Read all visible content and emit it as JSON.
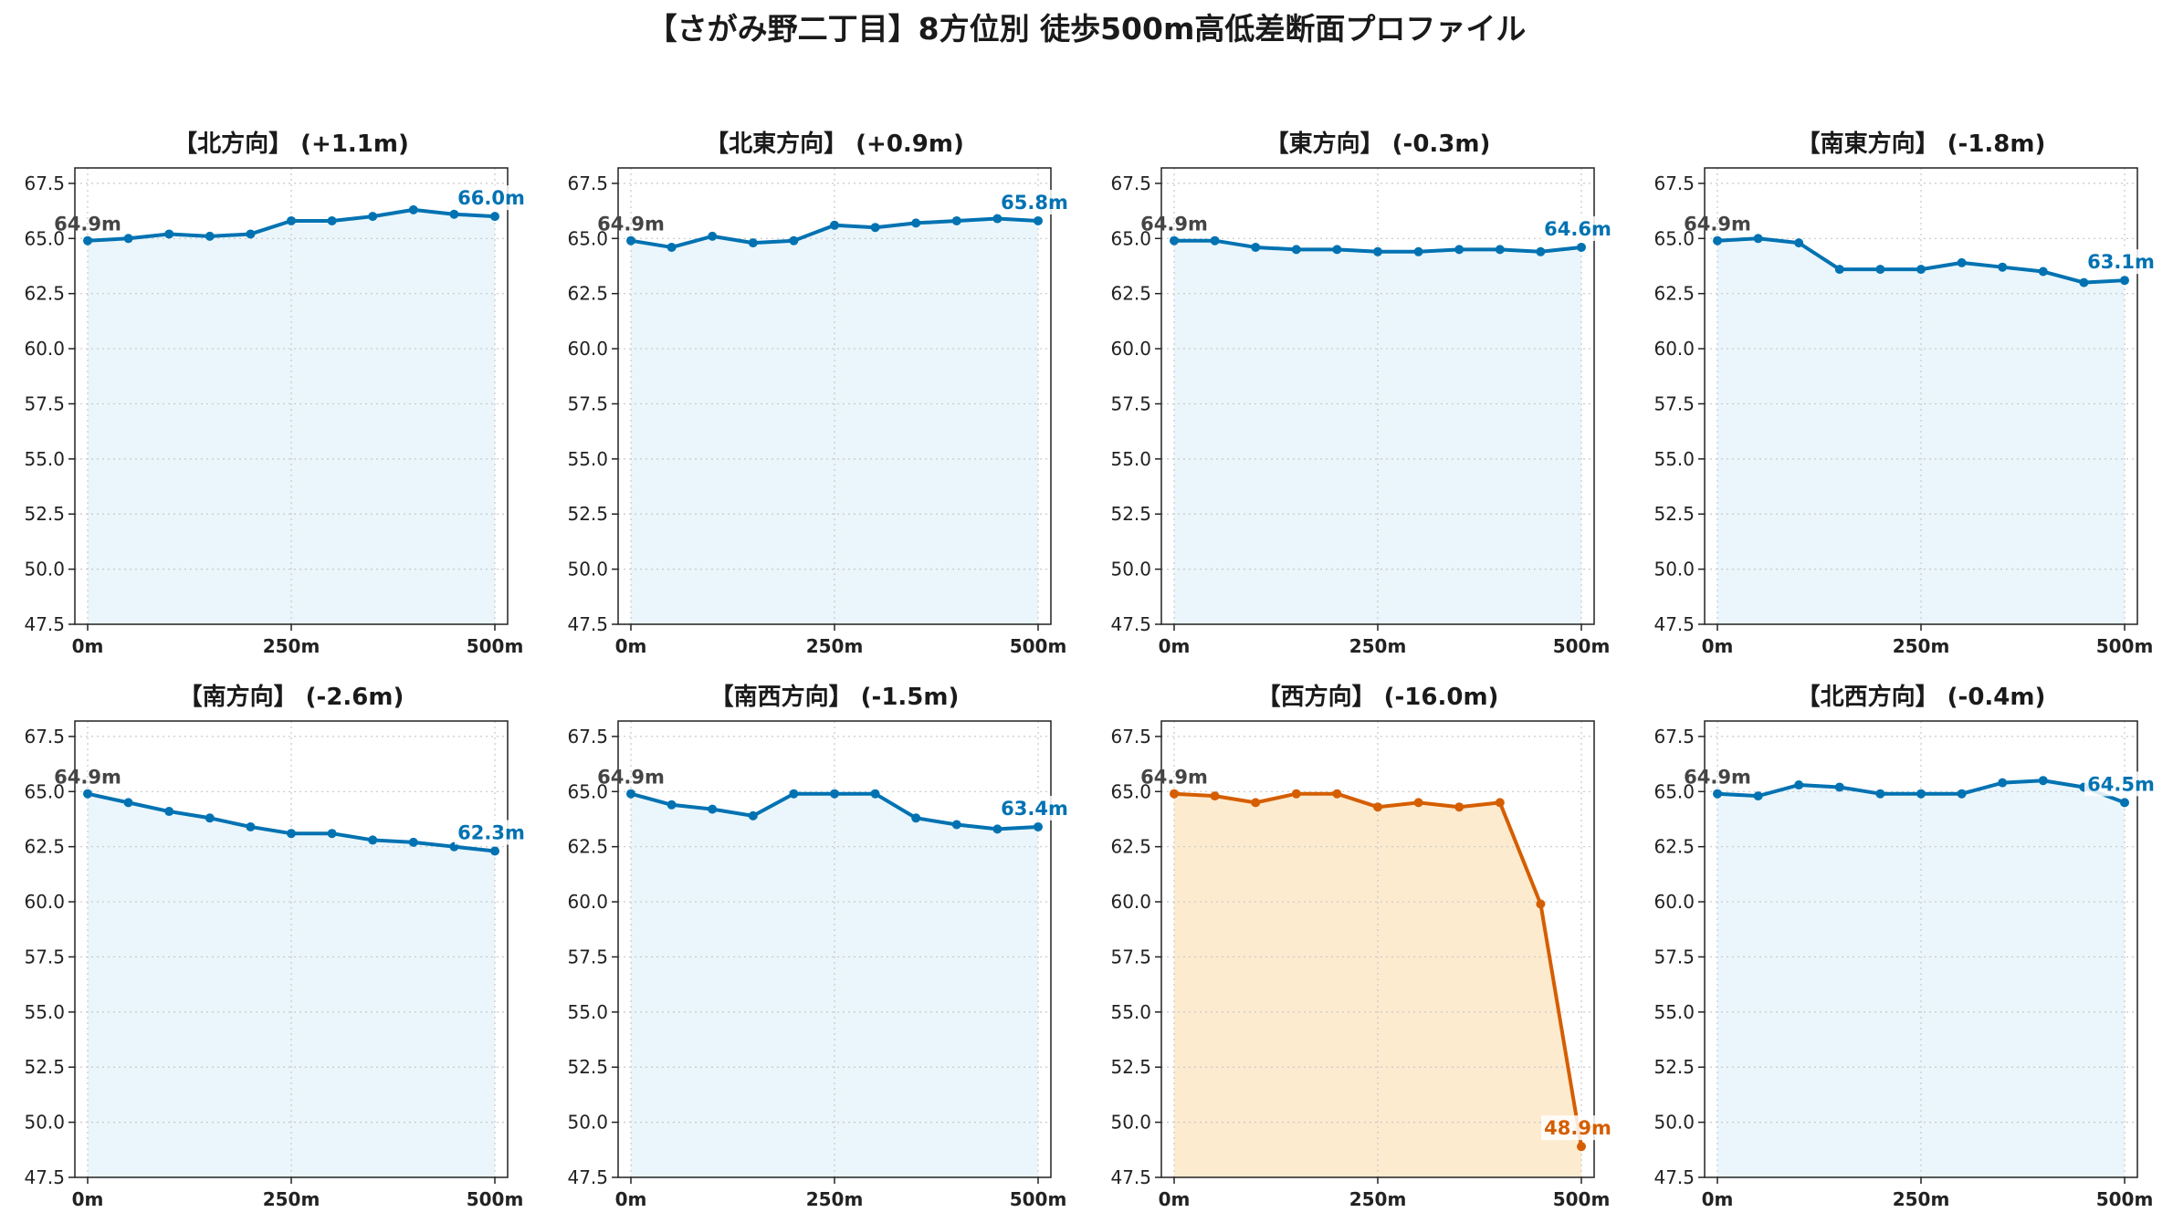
{
  "title": "【さがみ野二丁目】8方位別 徒歩500m高低差断面プロファイル",
  "colors": {
    "normal_line": "#0072b2",
    "normal_fill": "#eaf6fb",
    "alert_line": "#d55e00",
    "alert_fill": "#fdebd0",
    "start_label": "#444444",
    "grid": "#c8c8c8"
  },
  "chart_data": [
    {
      "type": "line",
      "title": "【北方向】 (+1.1m)",
      "highlight": false,
      "x": [
        0,
        50,
        100,
        150,
        200,
        250,
        300,
        350,
        400,
        450,
        500
      ],
      "y": [
        64.9,
        65.0,
        65.2,
        65.1,
        65.2,
        65.8,
        65.8,
        66.0,
        66.3,
        66.1,
        66.0
      ],
      "start_label": "64.9m",
      "end_label": "66.0m",
      "xticks": [
        "0m",
        "250m",
        "500m"
      ],
      "xlim": [
        0,
        500
      ],
      "ylim": [
        47.5,
        68.2
      ],
      "yticks": [
        "47.5",
        "50.0",
        "52.5",
        "55.0",
        "57.5",
        "60.0",
        "62.5",
        "65.0",
        "67.5"
      ],
      "grid": true
    },
    {
      "type": "line",
      "title": "【北東方向】 (+0.9m)",
      "highlight": false,
      "x": [
        0,
        50,
        100,
        150,
        200,
        250,
        300,
        350,
        400,
        450,
        500
      ],
      "y": [
        64.9,
        64.6,
        65.1,
        64.8,
        64.9,
        65.6,
        65.5,
        65.7,
        65.8,
        65.9,
        65.8
      ],
      "start_label": "64.9m",
      "end_label": "65.8m",
      "xticks": [
        "0m",
        "250m",
        "500m"
      ],
      "xlim": [
        0,
        500
      ],
      "ylim": [
        47.5,
        68.2
      ],
      "yticks": [
        "47.5",
        "50.0",
        "52.5",
        "55.0",
        "57.5",
        "60.0",
        "62.5",
        "65.0",
        "67.5"
      ],
      "grid": true
    },
    {
      "type": "line",
      "title": "【東方向】 (-0.3m)",
      "highlight": false,
      "x": [
        0,
        50,
        100,
        150,
        200,
        250,
        300,
        350,
        400,
        450,
        500
      ],
      "y": [
        64.9,
        64.9,
        64.6,
        64.5,
        64.5,
        64.4,
        64.4,
        64.5,
        64.5,
        64.4,
        64.6
      ],
      "start_label": "64.9m",
      "end_label": "64.6m",
      "xticks": [
        "0m",
        "250m",
        "500m"
      ],
      "xlim": [
        0,
        500
      ],
      "ylim": [
        47.5,
        68.2
      ],
      "yticks": [
        "47.5",
        "50.0",
        "52.5",
        "55.0",
        "57.5",
        "60.0",
        "62.5",
        "65.0",
        "67.5"
      ],
      "grid": true
    },
    {
      "type": "line",
      "title": "【南東方向】 (-1.8m)",
      "highlight": false,
      "x": [
        0,
        50,
        100,
        150,
        200,
        250,
        300,
        350,
        400,
        450,
        500
      ],
      "y": [
        64.9,
        65.0,
        64.8,
        63.6,
        63.6,
        63.6,
        63.9,
        63.7,
        63.5,
        63.0,
        63.1
      ],
      "start_label": "64.9m",
      "end_label": "63.1m",
      "xticks": [
        "0m",
        "250m",
        "500m"
      ],
      "xlim": [
        0,
        500
      ],
      "ylim": [
        47.5,
        68.2
      ],
      "yticks": [
        "47.5",
        "50.0",
        "52.5",
        "55.0",
        "57.5",
        "60.0",
        "62.5",
        "65.0",
        "67.5"
      ],
      "grid": true
    },
    {
      "type": "line",
      "title": "【南方向】 (-2.6m)",
      "highlight": false,
      "x": [
        0,
        50,
        100,
        150,
        200,
        250,
        300,
        350,
        400,
        450,
        500
      ],
      "y": [
        64.9,
        64.5,
        64.1,
        63.8,
        63.4,
        63.1,
        63.1,
        62.8,
        62.7,
        62.5,
        62.3
      ],
      "start_label": "64.9m",
      "end_label": "62.3m",
      "xticks": [
        "0m",
        "250m",
        "500m"
      ],
      "xlim": [
        0,
        500
      ],
      "ylim": [
        47.5,
        68.2
      ],
      "yticks": [
        "47.5",
        "50.0",
        "52.5",
        "55.0",
        "57.5",
        "60.0",
        "62.5",
        "65.0",
        "67.5"
      ],
      "grid": true
    },
    {
      "type": "line",
      "title": "【南西方向】 (-1.5m)",
      "highlight": false,
      "x": [
        0,
        50,
        100,
        150,
        200,
        250,
        300,
        350,
        400,
        450,
        500
      ],
      "y": [
        64.9,
        64.4,
        64.2,
        63.9,
        64.9,
        64.9,
        64.9,
        63.8,
        63.5,
        63.3,
        63.4
      ],
      "start_label": "64.9m",
      "end_label": "63.4m",
      "xticks": [
        "0m",
        "250m",
        "500m"
      ],
      "xlim": [
        0,
        500
      ],
      "ylim": [
        47.5,
        68.2
      ],
      "yticks": [
        "47.5",
        "50.0",
        "52.5",
        "55.0",
        "57.5",
        "60.0",
        "62.5",
        "65.0",
        "67.5"
      ],
      "grid": true
    },
    {
      "type": "line",
      "title": "【西方向】 (-16.0m)",
      "highlight": true,
      "x": [
        0,
        50,
        100,
        150,
        200,
        250,
        300,
        350,
        400,
        450,
        500
      ],
      "y": [
        64.9,
        64.8,
        64.5,
        64.9,
        64.9,
        64.3,
        64.5,
        64.3,
        64.5,
        59.9,
        48.9
      ],
      "start_label": "64.9m",
      "end_label": "48.9m",
      "xticks": [
        "0m",
        "250m",
        "500m"
      ],
      "xlim": [
        0,
        500
      ],
      "ylim": [
        47.5,
        68.2
      ],
      "yticks": [
        "47.5",
        "50.0",
        "52.5",
        "55.0",
        "57.5",
        "60.0",
        "62.5",
        "65.0",
        "67.5"
      ],
      "grid": true
    },
    {
      "type": "line",
      "title": "【北西方向】 (-0.4m)",
      "highlight": false,
      "x": [
        0,
        50,
        100,
        150,
        200,
        250,
        300,
        350,
        400,
        450,
        500
      ],
      "y": [
        64.9,
        64.8,
        65.3,
        65.2,
        64.9,
        64.9,
        64.9,
        65.4,
        65.5,
        65.2,
        64.5
      ],
      "start_label": "64.9m",
      "end_label": "64.5m",
      "xticks": [
        "0m",
        "250m",
        "500m"
      ],
      "xlim": [
        0,
        500
      ],
      "ylim": [
        47.5,
        68.2
      ],
      "yticks": [
        "47.5",
        "50.0",
        "52.5",
        "55.0",
        "57.5",
        "60.0",
        "62.5",
        "65.0",
        "67.5"
      ],
      "grid": true
    }
  ]
}
